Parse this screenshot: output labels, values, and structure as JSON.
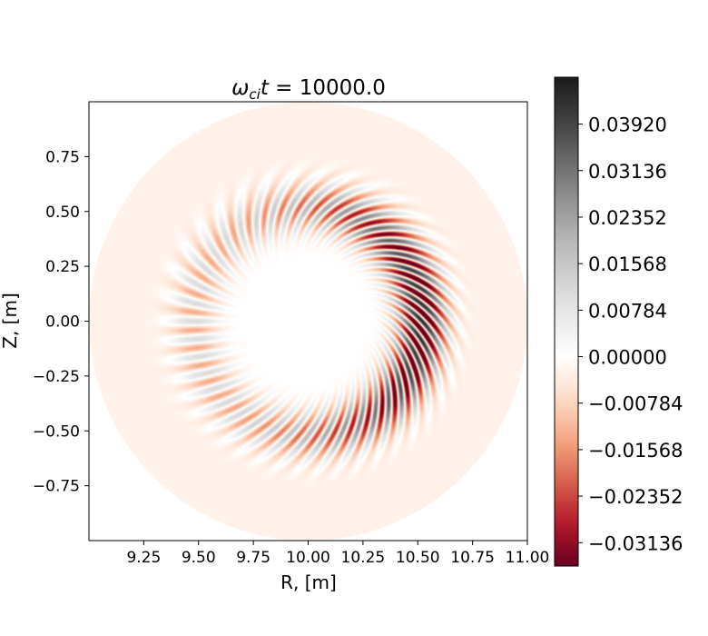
{
  "chart_data": {
    "type": "heatmap",
    "title_prefix": "ω",
    "title_sub": "ci",
    "title_var": "t",
    "title_value": " = 10000.0",
    "xlabel": "R, [m]",
    "ylabel": "Z, [m]",
    "xlim": [
      9.0,
      11.0
    ],
    "ylim": [
      -1.0,
      1.0
    ],
    "xticks": [
      9.25,
      9.5,
      9.75,
      10.0,
      10.25,
      10.5,
      10.75,
      11.0
    ],
    "xtick_labels": [
      "9.25",
      "9.50",
      "9.75",
      "10.00",
      "10.25",
      "10.50",
      "10.75",
      "11.00"
    ],
    "yticks": [
      0.75,
      0.5,
      0.25,
      0.0,
      -0.25,
      -0.5,
      -0.75
    ],
    "ytick_labels": [
      "0.75",
      "0.50",
      "0.25",
      "0.00",
      "−0.25",
      "−0.50",
      "−0.75"
    ],
    "domain": {
      "center_R": 10.0,
      "center_Z": 0.0,
      "radius": 1.0,
      "background_value": -0.0025
    },
    "mode_ring": {
      "radius": 0.52,
      "width": 0.11,
      "poloidal_mode_number": 40,
      "peak_theta_deg": 0,
      "peak_amplitude": 0.046,
      "min_amplitude": 0.012
    },
    "colorbar": {
      "cmap": "RdGy",
      "vmin": -0.0353,
      "vmax": 0.0471,
      "center": 0.0,
      "ticks": [
        -0.03136,
        -0.02352,
        -0.01568,
        -0.00784,
        0.0,
        0.00784,
        0.01568,
        0.02352,
        0.03136,
        0.0392
      ],
      "tick_labels": [
        "−0.03136",
        "−0.02352",
        "−0.01568",
        "−0.00784",
        "0.00000",
        "0.00784",
        "0.01568",
        "0.02352",
        "0.03136",
        "0.03920"
      ],
      "stops_neg": [
        "#67001f",
        "#b2182b",
        "#d6604d",
        "#f4a582",
        "#fddbc7",
        "#ffffff"
      ],
      "stops_pos": [
        "#ffffff",
        "#e0e0e0",
        "#bababa",
        "#878787",
        "#4d4d4d",
        "#1a1a1a"
      ]
    }
  }
}
